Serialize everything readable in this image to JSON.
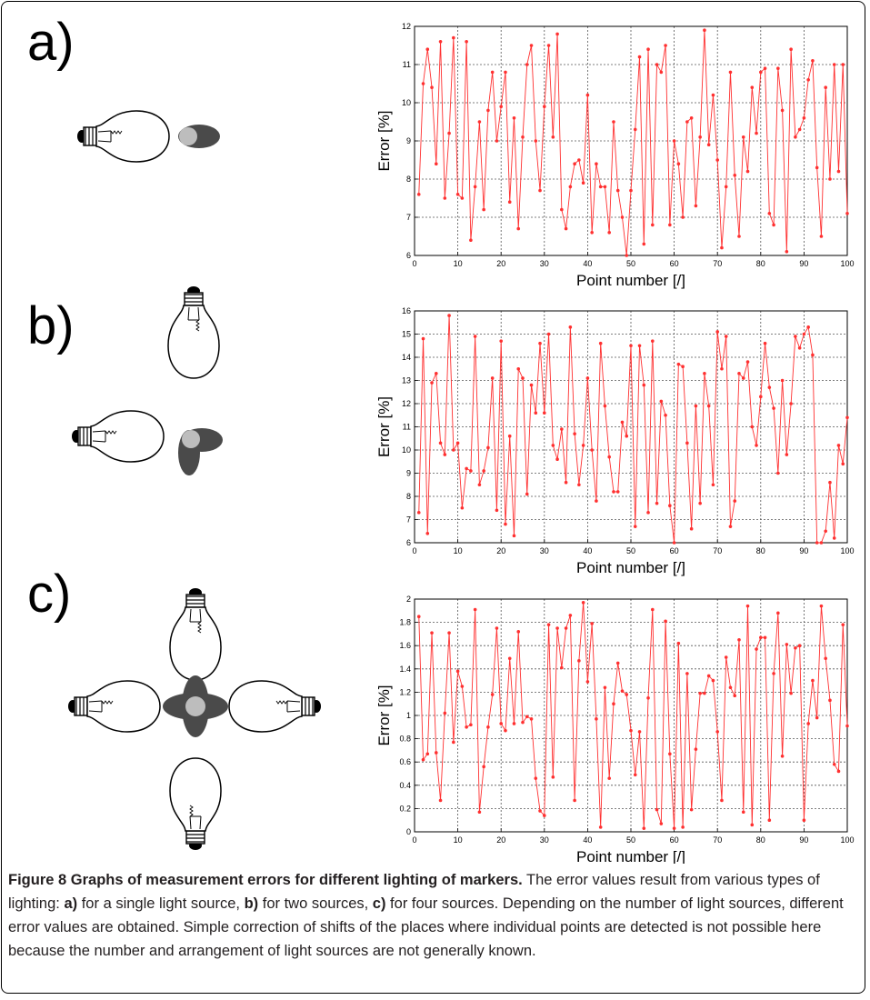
{
  "panels": [
    {
      "letter": "a)"
    },
    {
      "letter": "b)"
    },
    {
      "letter": "c)"
    }
  ],
  "caption": {
    "title": "Figure 8 Graphs of measurement errors for different lighting of markers.",
    "t1": " The error values result from various types of lighting: ",
    "a": "a)",
    "t2": " for a single light source, ",
    "b": "b)",
    "t3": " for two sources, ",
    "c": "c)",
    "t4": " for four sources. Depending on the number of light sources, different error values are obtained. Simple correction of shifts of the places where individual points are detected is not possible here because the number and arrangement of light sources are not generally known."
  },
  "colors": {
    "series": "#ff3030",
    "grid": "#555555",
    "bulb_base": "#000000",
    "marker_dark": "#4a4a4a",
    "marker_light": "#bdbdbd"
  },
  "chart_data": [
    {
      "type": "line",
      "xlabel": "Point number [/]",
      "ylabel": "Error [%]",
      "xlim": [
        0,
        100
      ],
      "ylim": [
        6,
        12
      ],
      "xticks": [
        0,
        10,
        20,
        30,
        40,
        50,
        60,
        70,
        80,
        90,
        100
      ],
      "yticks": [
        6,
        7,
        8,
        9,
        10,
        11,
        12
      ],
      "grid": true,
      "x": [
        1,
        2,
        3,
        4,
        5,
        6,
        7,
        8,
        9,
        10,
        11,
        12,
        13,
        14,
        15,
        16,
        17,
        18,
        19,
        20,
        21,
        22,
        23,
        24,
        25,
        26,
        27,
        28,
        29,
        30,
        31,
        32,
        33,
        34,
        35,
        36,
        37,
        38,
        39,
        40,
        41,
        42,
        43,
        44,
        45,
        46,
        47,
        48,
        49,
        50,
        51,
        52,
        53,
        54,
        55,
        56,
        57,
        58,
        59,
        60,
        61,
        62,
        63,
        64,
        65,
        66,
        67,
        68,
        69,
        70,
        71,
        72,
        73,
        74,
        75,
        76,
        77,
        78,
        79,
        80,
        81,
        82,
        83,
        84,
        85,
        86,
        87,
        88,
        89,
        90,
        91,
        92,
        93,
        94,
        95,
        96,
        97,
        98,
        99,
        100
      ],
      "values": [
        7.6,
        10.5,
        11.4,
        10.4,
        8.4,
        11.6,
        7.5,
        9.2,
        11.7,
        7.6,
        7.5,
        11.6,
        6.4,
        7.8,
        9.5,
        7.2,
        9.8,
        10.8,
        9.0,
        9.9,
        10.8,
        7.4,
        9.6,
        6.7,
        9.1,
        11.0,
        11.5,
        9.0,
        7.7,
        9.9,
        11.5,
        9.1,
        11.8,
        7.2,
        6.7,
        7.8,
        8.4,
        8.5,
        7.9,
        10.2,
        6.6,
        8.4,
        7.8,
        7.8,
        6.6,
        9.5,
        7.7,
        7.0,
        6.0,
        7.7,
        9.3,
        11.2,
        6.3,
        11.4,
        6.8,
        11.0,
        10.8,
        11.5,
        6.8,
        9.0,
        8.4,
        7.0,
        9.5,
        9.6,
        7.3,
        9.1,
        11.9,
        8.9,
        10.2,
        8.5,
        6.2,
        7.8,
        10.8,
        8.1,
        6.5,
        9.1,
        8.2,
        10.4,
        9.2,
        10.8,
        10.9,
        7.1,
        6.8,
        10.9,
        9.8,
        6.1,
        11.4,
        9.1,
        9.3,
        9.6,
        10.6,
        11.1,
        8.3,
        6.5,
        10.4,
        8.0,
        11.0,
        8.2,
        11.0,
        7.1
      ]
    },
    {
      "type": "line",
      "xlabel": "Point number [/]",
      "ylabel": "Error [%]",
      "xlim": [
        0,
        100
      ],
      "ylim": [
        6,
        16
      ],
      "xticks": [
        0,
        10,
        20,
        30,
        40,
        50,
        60,
        70,
        80,
        90,
        100
      ],
      "yticks": [
        6,
        7,
        8,
        9,
        10,
        11,
        12,
        13,
        14,
        15,
        16
      ],
      "grid": true,
      "x": [
        1,
        2,
        3,
        4,
        5,
        6,
        7,
        8,
        9,
        10,
        11,
        12,
        13,
        14,
        15,
        16,
        17,
        18,
        19,
        20,
        21,
        22,
        23,
        24,
        25,
        26,
        27,
        28,
        29,
        30,
        31,
        32,
        33,
        34,
        35,
        36,
        37,
        38,
        39,
        40,
        41,
        42,
        43,
        44,
        45,
        46,
        47,
        48,
        49,
        50,
        51,
        52,
        53,
        54,
        55,
        56,
        57,
        58,
        59,
        60,
        61,
        62,
        63,
        64,
        65,
        66,
        67,
        68,
        69,
        70,
        71,
        72,
        73,
        74,
        75,
        76,
        77,
        78,
        79,
        80,
        81,
        82,
        83,
        84,
        85,
        86,
        87,
        88,
        89,
        90,
        91,
        92,
        93,
        94,
        95,
        96,
        97,
        98,
        99,
        100
      ],
      "values": [
        7.3,
        14.8,
        6.4,
        12.9,
        13.3,
        10.3,
        9.8,
        15.8,
        10.0,
        10.3,
        7.5,
        9.2,
        9.1,
        14.9,
        8.5,
        9.1,
        10.1,
        13.1,
        7.4,
        14.7,
        6.8,
        10.6,
        6.3,
        13.5,
        13.1,
        8.1,
        12.8,
        11.6,
        14.6,
        11.6,
        15.0,
        10.2,
        9.6,
        10.9,
        8.6,
        15.3,
        10.7,
        8.5,
        10.2,
        13.1,
        10.0,
        7.8,
        14.6,
        11.9,
        9.7,
        8.2,
        8.2,
        11.2,
        10.6,
        14.5,
        6.7,
        14.5,
        12.8,
        7.3,
        14.7,
        7.7,
        12.1,
        11.5,
        7.6,
        6.0,
        13.7,
        13.6,
        10.3,
        6.6,
        11.9,
        7.7,
        13.3,
        11.9,
        8.5,
        15.1,
        13.5,
        14.9,
        6.7,
        7.8,
        13.3,
        13.1,
        13.8,
        11.0,
        10.2,
        12.3,
        14.6,
        12.7,
        11.8,
        9.0,
        13.0,
        9.8,
        12.0,
        14.9,
        14.4,
        15.0,
        15.3,
        14.1,
        6.0,
        6.0,
        6.5,
        8.6,
        6.2,
        10.2,
        9.4,
        11.4
      ]
    },
    {
      "type": "line",
      "xlabel": "Point number [/]",
      "ylabel": "Error [%]",
      "xlim": [
        0,
        100
      ],
      "ylim": [
        0,
        2
      ],
      "xticks": [
        0,
        10,
        20,
        30,
        40,
        50,
        60,
        70,
        80,
        90,
        100
      ],
      "yticks": [
        0,
        0.2,
        0.4,
        0.6,
        0.8,
        1,
        1.2,
        1.4,
        1.6,
        1.8,
        2
      ],
      "grid": true,
      "x": [
        1,
        2,
        3,
        4,
        5,
        6,
        7,
        8,
        9,
        10,
        11,
        12,
        13,
        14,
        15,
        16,
        17,
        18,
        19,
        20,
        21,
        22,
        23,
        24,
        25,
        26,
        27,
        28,
        29,
        30,
        31,
        32,
        33,
        34,
        35,
        36,
        37,
        38,
        39,
        40,
        41,
        42,
        43,
        44,
        45,
        46,
        47,
        48,
        49,
        50,
        51,
        52,
        53,
        54,
        55,
        56,
        57,
        58,
        59,
        60,
        61,
        62,
        63,
        64,
        65,
        66,
        67,
        68,
        69,
        70,
        71,
        72,
        73,
        74,
        75,
        76,
        77,
        78,
        79,
        80,
        81,
        82,
        83,
        84,
        85,
        86,
        87,
        88,
        89,
        90,
        91,
        92,
        93,
        94,
        95,
        96,
        97,
        98,
        99,
        100
      ],
      "values": [
        1.85,
        0.62,
        0.67,
        1.71,
        0.68,
        0.27,
        1.02,
        1.71,
        0.77,
        1.38,
        1.25,
        0.9,
        0.92,
        1.91,
        0.17,
        0.56,
        0.9,
        1.18,
        1.75,
        0.93,
        0.87,
        1.49,
        0.93,
        1.72,
        0.94,
        0.99,
        0.97,
        0.46,
        0.18,
        0.14,
        1.78,
        0.47,
        1.75,
        1.41,
        1.75,
        1.86,
        0.27,
        1.47,
        1.97,
        1.29,
        1.79,
        0.97,
        0.04,
        1.24,
        0.46,
        1.1,
        1.45,
        1.21,
        1.18,
        0.87,
        0.49,
        0.86,
        0.03,
        1.15,
        1.91,
        0.19,
        0.07,
        1.81,
        0.67,
        0.03,
        1.62,
        0.04,
        1.36,
        0.19,
        0.71,
        1.19,
        1.19,
        1.34,
        1.3,
        0.86,
        0.27,
        1.5,
        1.24,
        1.17,
        1.65,
        0.17,
        1.94,
        0.06,
        1.57,
        1.67,
        1.67,
        0.1,
        1.36,
        1.88,
        0.65,
        1.61,
        1.19,
        1.58,
        1.6,
        0.1,
        0.93,
        1.3,
        0.98,
        1.94,
        1.49,
        1.13,
        0.58,
        0.52,
        1.78,
        0.91
      ]
    }
  ]
}
